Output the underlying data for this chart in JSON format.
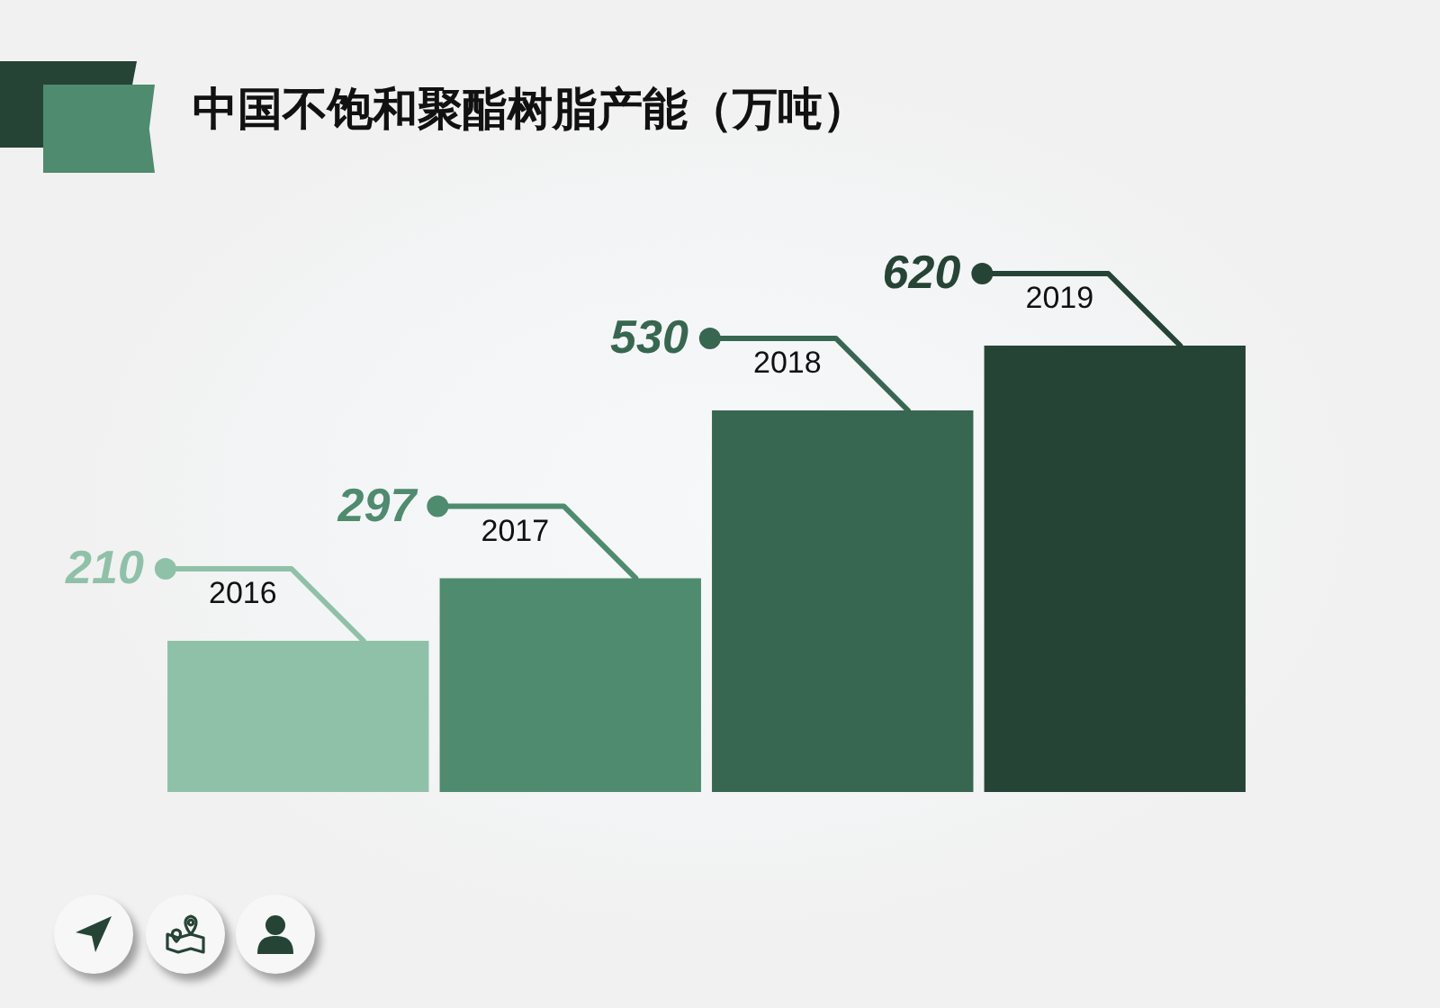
{
  "chart_data": {
    "type": "bar",
    "title": "中国不饱和聚酯树脂产能（万吨）",
    "categories": [
      "2016",
      "2017",
      "2018",
      "2019"
    ],
    "values": [
      210,
      297,
      530,
      620
    ],
    "colors": [
      "#8fc1a9",
      "#4e8b6f",
      "#376751",
      "#264436"
    ],
    "data_labels": true,
    "tick_labels": false,
    "grid": false,
    "legend": false
  }
}
